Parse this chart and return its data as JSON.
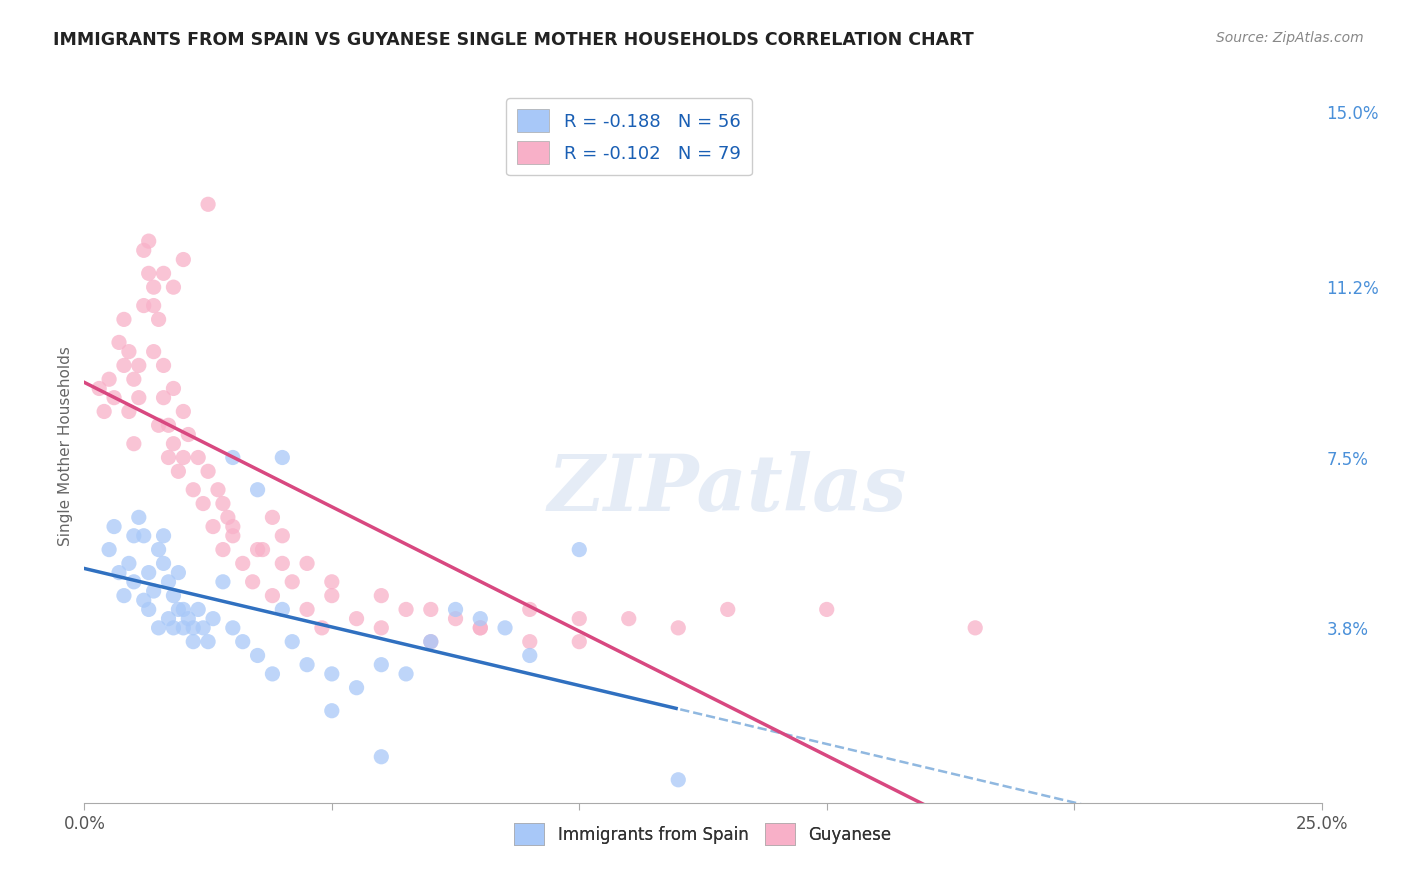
{
  "title": "IMMIGRANTS FROM SPAIN VS GUYANESE SINGLE MOTHER HOUSEHOLDS CORRELATION CHART",
  "source": "Source: ZipAtlas.com",
  "ylabel": "Single Mother Households",
  "xlim": [
    0.0,
    0.25
  ],
  "ylim": [
    0.0,
    0.155
  ],
  "ytick_labels": [
    "3.8%",
    "7.5%",
    "11.2%",
    "15.0%"
  ],
  "ytick_positions": [
    0.038,
    0.075,
    0.112,
    0.15
  ],
  "grid_color": "#c8c8c8",
  "background_color": "#ffffff",
  "watermark": "ZIPatlas",
  "legend_labels": [
    "Immigrants from Spain",
    "Guyanese"
  ],
  "series1_color": "#a8c8f8",
  "series2_color": "#f8b0c8",
  "line1_color": "#3070c0",
  "line2_color": "#d84880",
  "line1_dashed_color": "#90b8e0",
  "R1": -0.188,
  "N1": 56,
  "R2": -0.102,
  "N2": 79,
  "series1_x": [
    0.005,
    0.006,
    0.007,
    0.008,
    0.009,
    0.01,
    0.01,
    0.011,
    0.012,
    0.012,
    0.013,
    0.013,
    0.014,
    0.015,
    0.015,
    0.016,
    0.016,
    0.017,
    0.017,
    0.018,
    0.018,
    0.019,
    0.019,
    0.02,
    0.02,
    0.021,
    0.022,
    0.022,
    0.023,
    0.024,
    0.025,
    0.026,
    0.028,
    0.03,
    0.032,
    0.035,
    0.038,
    0.04,
    0.042,
    0.045,
    0.05,
    0.055,
    0.06,
    0.065,
    0.07,
    0.075,
    0.08,
    0.085,
    0.09,
    0.1,
    0.03,
    0.035,
    0.04,
    0.05,
    0.06,
    0.12
  ],
  "series1_y": [
    0.055,
    0.06,
    0.05,
    0.045,
    0.052,
    0.048,
    0.058,
    0.062,
    0.044,
    0.058,
    0.05,
    0.042,
    0.046,
    0.038,
    0.055,
    0.052,
    0.058,
    0.04,
    0.048,
    0.038,
    0.045,
    0.042,
    0.05,
    0.038,
    0.042,
    0.04,
    0.038,
    0.035,
    0.042,
    0.038,
    0.035,
    0.04,
    0.048,
    0.038,
    0.035,
    0.032,
    0.028,
    0.042,
    0.035,
    0.03,
    0.028,
    0.025,
    0.03,
    0.028,
    0.035,
    0.042,
    0.04,
    0.038,
    0.032,
    0.055,
    0.075,
    0.068,
    0.075,
    0.02,
    0.01,
    0.005
  ],
  "series2_x": [
    0.003,
    0.004,
    0.005,
    0.006,
    0.007,
    0.008,
    0.008,
    0.009,
    0.009,
    0.01,
    0.01,
    0.011,
    0.011,
    0.012,
    0.012,
    0.013,
    0.013,
    0.014,
    0.014,
    0.015,
    0.015,
    0.016,
    0.016,
    0.017,
    0.017,
    0.018,
    0.018,
    0.019,
    0.02,
    0.02,
    0.021,
    0.022,
    0.023,
    0.024,
    0.025,
    0.026,
    0.027,
    0.028,
    0.029,
    0.03,
    0.032,
    0.034,
    0.036,
    0.038,
    0.04,
    0.042,
    0.045,
    0.048,
    0.05,
    0.055,
    0.06,
    0.065,
    0.07,
    0.075,
    0.08,
    0.09,
    0.1,
    0.11,
    0.12,
    0.13,
    0.014,
    0.016,
    0.018,
    0.02,
    0.025,
    0.028,
    0.03,
    0.035,
    0.038,
    0.04,
    0.045,
    0.05,
    0.06,
    0.07,
    0.08,
    0.09,
    0.1,
    0.15,
    0.18
  ],
  "series2_y": [
    0.09,
    0.085,
    0.092,
    0.088,
    0.1,
    0.095,
    0.105,
    0.098,
    0.085,
    0.092,
    0.078,
    0.088,
    0.095,
    0.108,
    0.12,
    0.115,
    0.122,
    0.112,
    0.098,
    0.105,
    0.082,
    0.095,
    0.088,
    0.075,
    0.082,
    0.078,
    0.09,
    0.072,
    0.085,
    0.075,
    0.08,
    0.068,
    0.075,
    0.065,
    0.072,
    0.06,
    0.068,
    0.055,
    0.062,
    0.058,
    0.052,
    0.048,
    0.055,
    0.045,
    0.052,
    0.048,
    0.042,
    0.038,
    0.045,
    0.04,
    0.038,
    0.042,
    0.035,
    0.04,
    0.038,
    0.042,
    0.035,
    0.04,
    0.038,
    0.042,
    0.108,
    0.115,
    0.112,
    0.118,
    0.13,
    0.065,
    0.06,
    0.055,
    0.062,
    0.058,
    0.052,
    0.048,
    0.045,
    0.042,
    0.038,
    0.035,
    0.04,
    0.042,
    0.038
  ]
}
